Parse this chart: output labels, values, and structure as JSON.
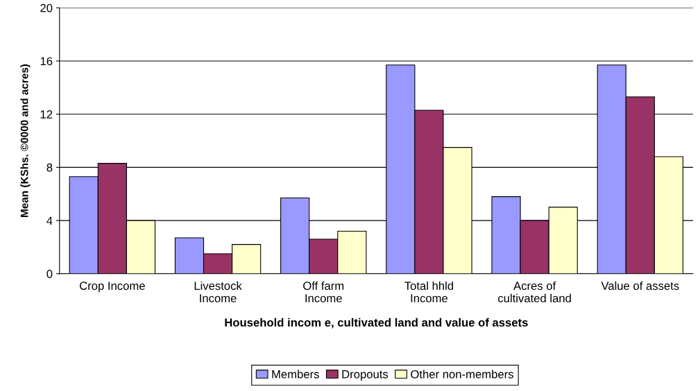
{
  "chart_data": {
    "type": "bar",
    "categories": [
      "Crop Income",
      "Livestock\nIncome",
      "Off farm\nIncome",
      "Total hhld\nIncome",
      "Acres of\ncultivated land",
      "Value of assets"
    ],
    "series": [
      {
        "name": "Members",
        "color": "#9999ff",
        "values": [
          7.3,
          2.7,
          5.7,
          15.7,
          5.8,
          15.7
        ]
      },
      {
        "name": "Dropouts",
        "color": "#993366",
        "values": [
          8.3,
          1.5,
          2.6,
          12.3,
          4.0,
          13.3
        ]
      },
      {
        "name": "Other non-members",
        "color": "#ffffcc",
        "values": [
          4.0,
          2.2,
          3.2,
          9.5,
          5.0,
          8.8
        ]
      }
    ],
    "xlabel": "Household incom e, cultivated land and value of assets",
    "ylabel": "Mean (KShs. ©0000 and acres)",
    "ylim": [
      0,
      20
    ],
    "yticks": [
      0,
      4,
      8,
      12,
      16,
      20
    ],
    "grid": "y",
    "legend": "bottom"
  }
}
